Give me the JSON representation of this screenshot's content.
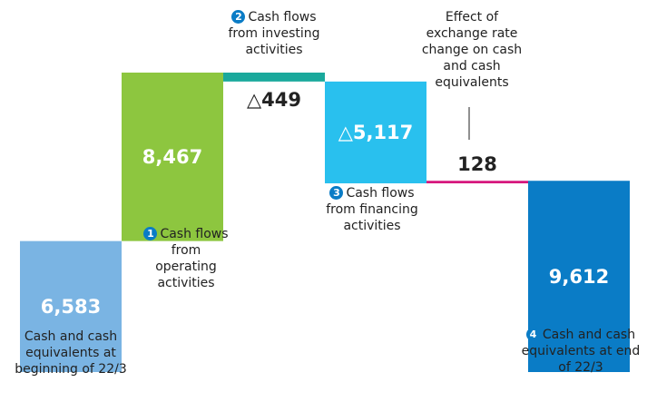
{
  "chart_data": {
    "type": "waterfall",
    "categories": [
      "Cash and cash equivalents at beginning of 22/3",
      "Cash flows from operating activities",
      "Cash flows from investing activities",
      "Cash flows from financing activities",
      "Effect of exchange rate change on cash and cash equivalents",
      "Cash and cash equivalents at end of 22/3"
    ],
    "step_numbers": [
      null,
      1,
      2,
      3,
      null,
      4
    ],
    "values": [
      6583,
      8467,
      -449,
      -5117,
      128,
      9612
    ],
    "value_labels": [
      "6,583",
      "8,467",
      "△449",
      "△5,117",
      "128",
      "9,612"
    ],
    "colors": [
      "#7ab4e3",
      "#8dc63f",
      "#1aa99c",
      "#29c0ee",
      "#d6177d",
      "#0a7cc6"
    ],
    "total_index": 5
  }
}
